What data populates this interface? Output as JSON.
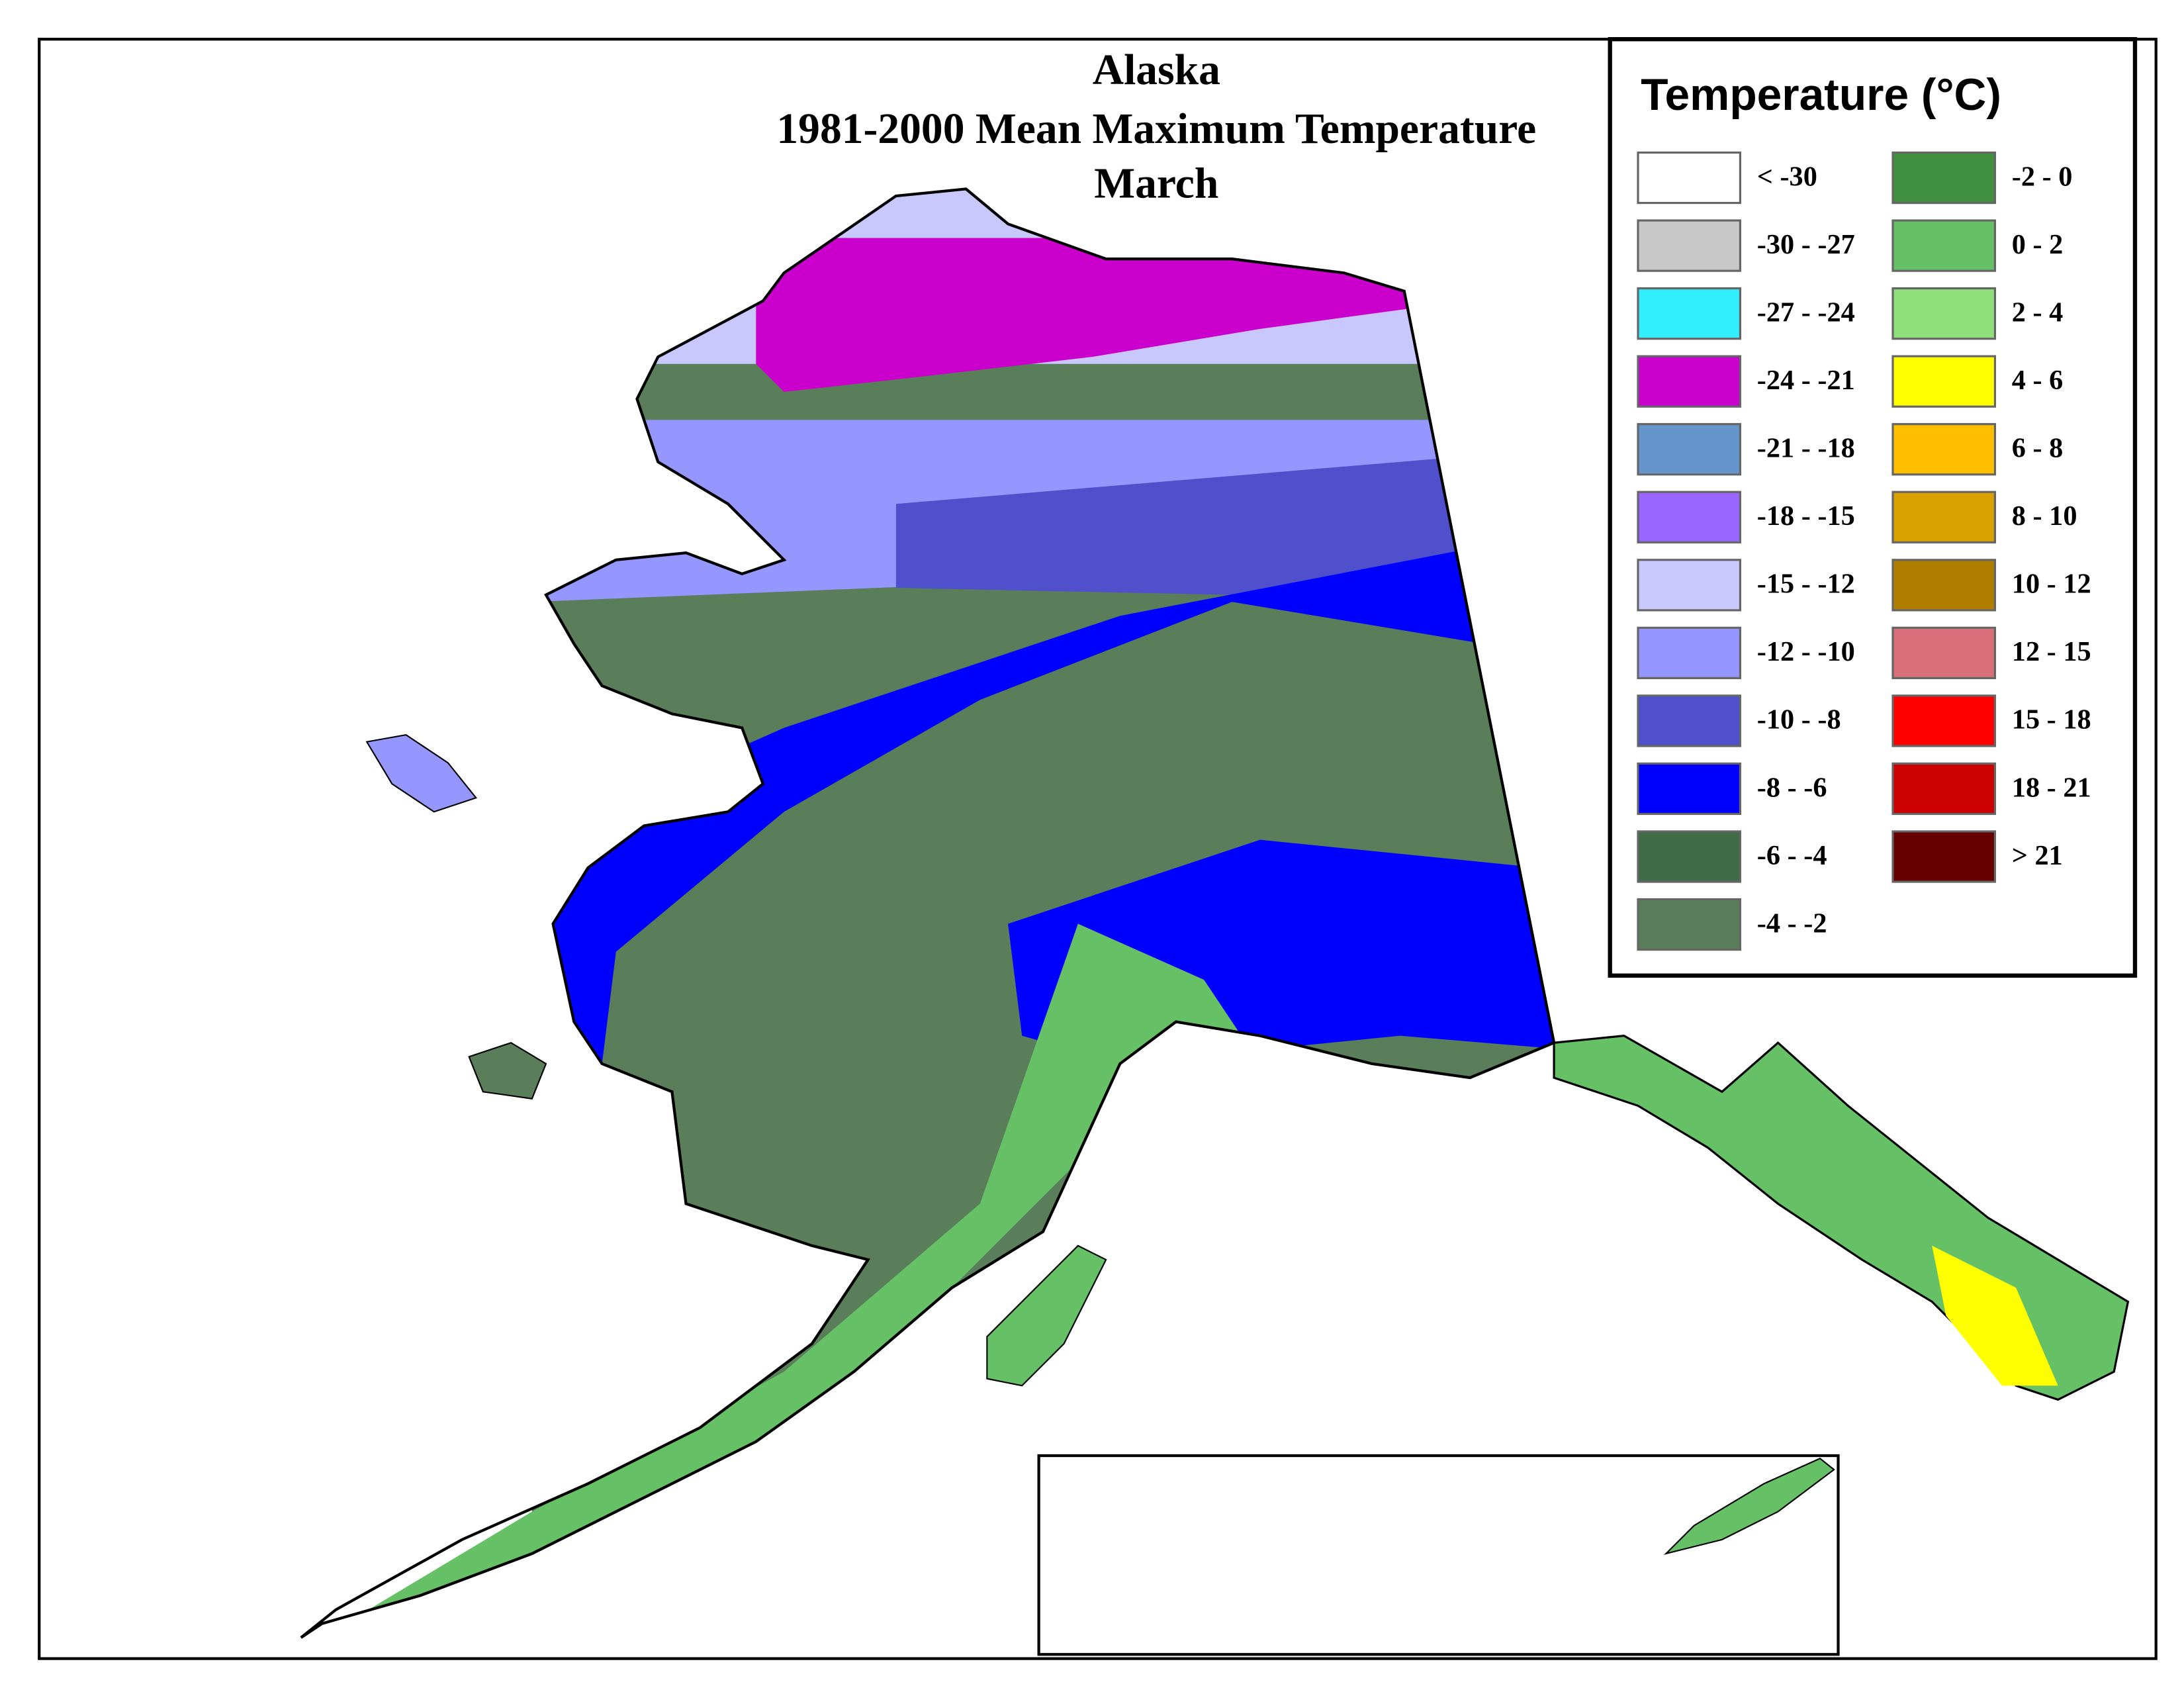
{
  "title": {
    "lines": [
      "Alaska",
      "1981-2000 Mean Maximum Temperature",
      "March"
    ]
  },
  "legend": {
    "title": "Temperature (°C)",
    "items": [
      {
        "label": "< -30",
        "color": "#ffffff"
      },
      {
        "label": "-30 - -27",
        "color": "#c8c8c8"
      },
      {
        "label": "-27 - -24",
        "color": "#33eeff"
      },
      {
        "label": "-24 - -21",
        "color": "#cc00cc"
      },
      {
        "label": "-21 - -18",
        "color": "#6495cd"
      },
      {
        "label": "-18 - -15",
        "color": "#9966ff"
      },
      {
        "label": "-15 - -12",
        "color": "#c8c8ff"
      },
      {
        "label": "-12 - -10",
        "color": "#9696ff"
      },
      {
        "label": "-10 - -8",
        "color": "#5050cc"
      },
      {
        "label": "-8 - -6",
        "color": "#0000ff"
      },
      {
        "label": "-6 - -4",
        "color": "#3f6b47"
      },
      {
        "label": "-4 - -2",
        "color": "#5a7d5a"
      },
      {
        "label": "-2 - 0",
        "color": "#3f8f3f"
      },
      {
        "label": "0 - 2",
        "color": "#66c066"
      },
      {
        "label": "2 - 4",
        "color": "#8fe07a"
      },
      {
        "label": "4 - 6",
        "color": "#ffff00"
      },
      {
        "label": "6 - 8",
        "color": "#ffbf00"
      },
      {
        "label": "8 - 10",
        "color": "#d9a000"
      },
      {
        "label": "10 - 12",
        "color": "#b07f00"
      },
      {
        "label": "12 - 15",
        "color": "#d97079"
      },
      {
        "label": "15 - 18",
        "color": "#ff0000"
      },
      {
        "label": "18 - 21",
        "color": "#cc0000"
      },
      {
        "label": "> 21",
        "color": "#660000"
      }
    ]
  }
}
